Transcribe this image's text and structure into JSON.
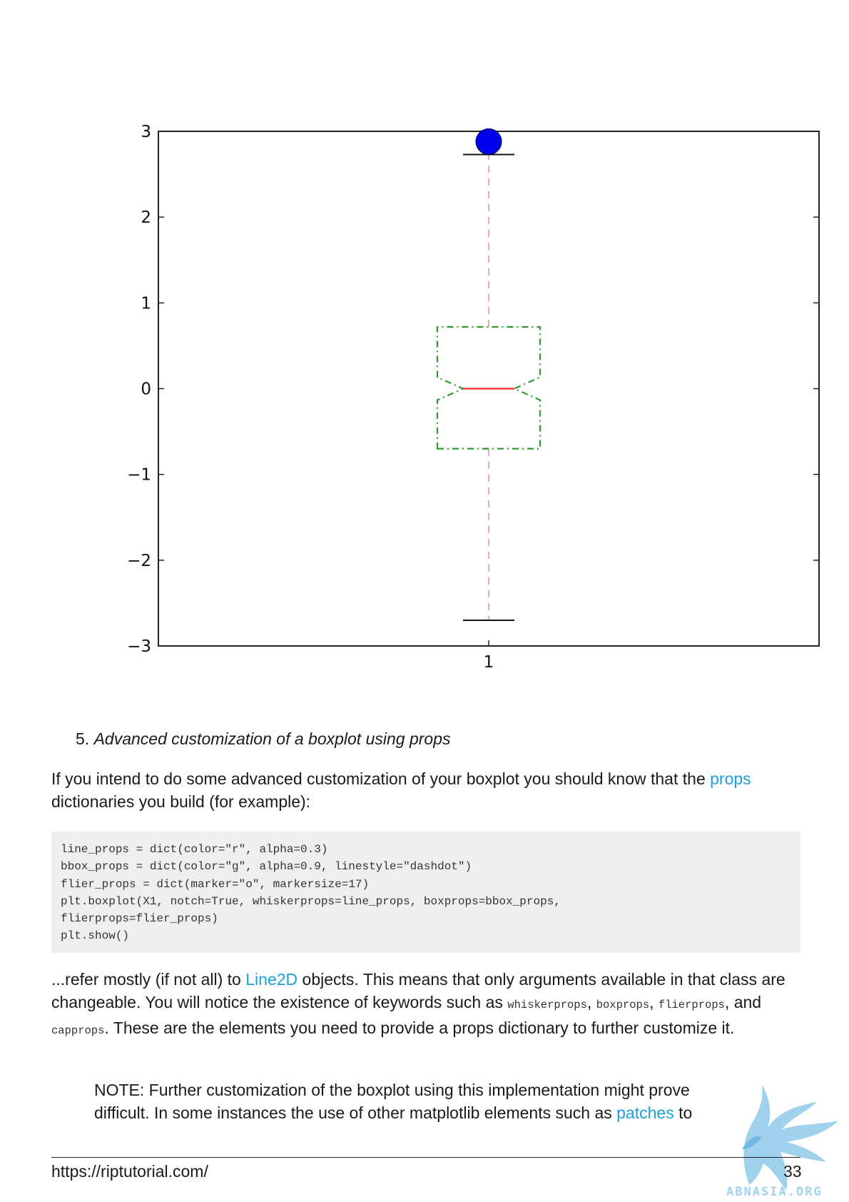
{
  "chart_data": {
    "type": "boxplot",
    "categories": [
      "1"
    ],
    "yticks": [
      "3",
      "2",
      "1",
      "0",
      "−1",
      "−2",
      "−3"
    ],
    "ytick_values": [
      3,
      2,
      1,
      0,
      -1,
      -2,
      -3
    ],
    "ylim": [
      -3,
      3
    ],
    "box": {
      "median": 0,
      "q1": -0.7,
      "q3": 0.72,
      "whisker_low": -2.7,
      "whisker_high": 2.73,
      "notch_low": -0.05,
      "notch_high": 0.05
    },
    "fliers": [
      2.88
    ],
    "title": "",
    "xlabel": "",
    "ylabel": "",
    "grid": false,
    "colors": {
      "whisker": "#f2a8b0",
      "box": "#2e9a2e",
      "median": "#ff2020",
      "cap": "#111111",
      "flier": "#0000ee",
      "axes": "#222222"
    }
  },
  "section": {
    "number": "5.",
    "title": "Advanced customization of a boxplot using props"
  },
  "para1": {
    "text_before": "If you intend to do some advanced customization of your boxplot you should know that the ",
    "link": "props",
    "text_after": " dictionaries you build (for example):"
  },
  "code": {
    "lines": [
      "line_props = dict(color=\"r\", alpha=0.3)",
      "bbox_props = dict(color=\"g\", alpha=0.9, linestyle=\"dashdot\")",
      "flier_props = dict(marker=\"o\", markersize=17)",
      "plt.boxplot(X1, notch=True, whiskerprops=line_props, boxprops=bbox_props,",
      "flierprops=flier_props)",
      "plt.show()"
    ]
  },
  "para2": {
    "t1": "...refer mostly (if not all) to ",
    "link": "Line2D",
    "t2": " objects. This means that only arguments available in that class are changeable. You will notice the existence of keywords such as ",
    "c1": "whiskerprops",
    "t3": ", ",
    "c2": "boxprops",
    "t4": ", ",
    "c3": "flierprops",
    "t5": ", and ",
    "c4": "capprops",
    "t6": ". These are the elements you need to provide a props dictionary to further customize it."
  },
  "note": {
    "text": "NOTE: Further customization of the boxplot using this implementation might prove difficult. In some instances the use of other matplotlib elements such as ",
    "link": "patches",
    "after": " to"
  },
  "footer": {
    "url": "https://riptutorial.com/",
    "page": "33"
  },
  "watermark": {
    "text": "ABNASIA.ORG"
  }
}
